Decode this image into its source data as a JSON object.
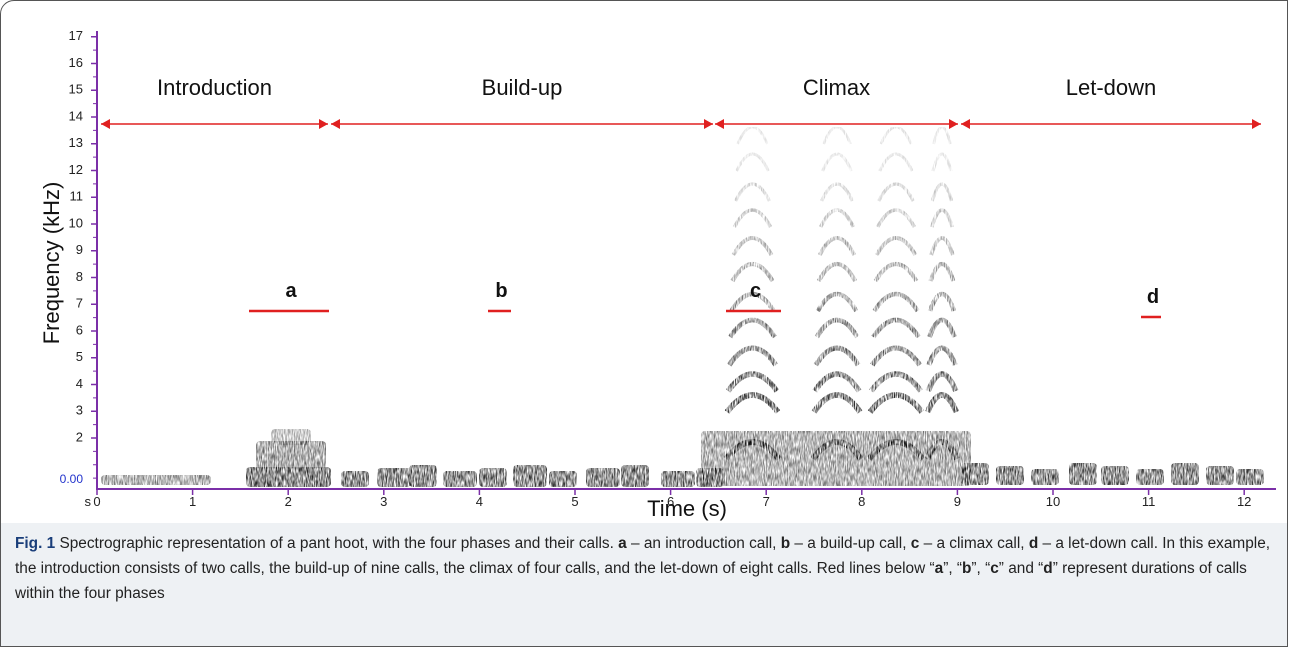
{
  "figure": {
    "y_axis_label": "Frequency (kHz)",
    "x_axis_label": "Time (s)",
    "y_origin_label": "0.00",
    "x_origin_prefix": "s",
    "yticks": [
      2,
      3,
      4,
      5,
      6,
      7,
      8,
      9,
      10,
      11,
      12,
      13,
      14,
      15,
      16,
      17
    ],
    "xticks": [
      0,
      1,
      2,
      3,
      4,
      5,
      6,
      7,
      8,
      9,
      10,
      11,
      12
    ],
    "phases": [
      "Introduction",
      "Build-up",
      "Climax",
      "Let-down"
    ],
    "calls": [
      "a",
      "b",
      "c",
      "d"
    ]
  },
  "caption": [
    "Fig. 1",
    " Spectrographic representation of a pant hoot, with the four phases and their calls. ",
    "a",
    " – an introduction call, ",
    "b",
    " – a build-up call, ",
    "c",
    " – a climax call, ",
    "d",
    " – a let-down call. In this example, the introduction consists of two calls, the build-up of nine calls, the climax of four calls, and the let-down of eight calls. Red lines below “",
    "a",
    "”, “",
    "b",
    "”, “",
    "c",
    "” and “",
    "d",
    "” represent durations of calls within the four phases"
  ]
}
